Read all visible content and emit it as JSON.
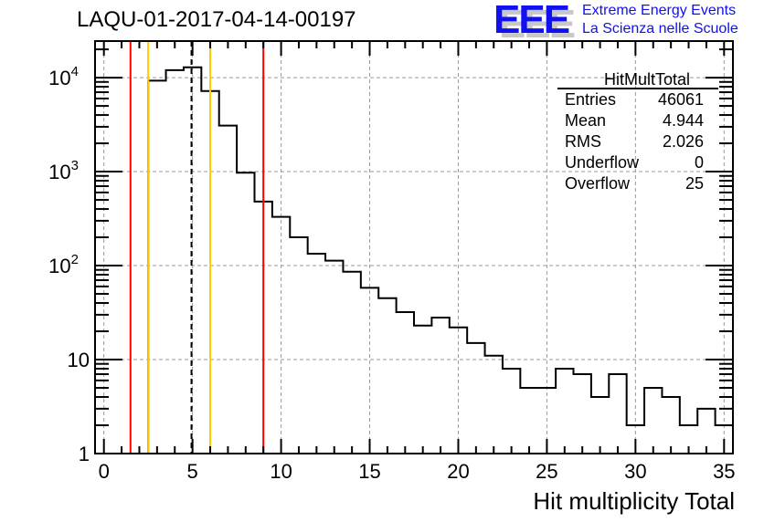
{
  "title": "LAQU-01-2017-04-14-00197",
  "logo": {
    "mark": "EEE",
    "line1": "Extreme Energy Events",
    "line2": "La Scienza nelle Scuole"
  },
  "stats": {
    "name": "HitMultTotal",
    "rows": [
      {
        "label": "Entries",
        "value": "46061"
      },
      {
        "label": "Mean",
        "value": "4.944"
      },
      {
        "label": "RMS",
        "value": "2.026"
      },
      {
        "label": "Underflow",
        "value": "0"
      },
      {
        "label": "Overflow",
        "value": "25"
      }
    ]
  },
  "chart_data": {
    "type": "bar",
    "histogram": true,
    "title": "LAQU-01-2017-04-14-00197",
    "xlabel": "Hit multiplicity Total",
    "ylabel": "",
    "xlim": [
      -0.5,
      35.5
    ],
    "ylim": [
      1,
      24500
    ],
    "yscale": "log",
    "grid": true,
    "x": [
      0,
      1,
      2,
      3,
      4,
      5,
      6,
      7,
      8,
      9,
      10,
      11,
      12,
      13,
      14,
      15,
      16,
      17,
      18,
      19,
      20,
      21,
      22,
      23,
      24,
      25,
      26,
      27,
      28,
      29,
      30,
      31,
      32,
      33,
      34,
      35
    ],
    "values": [
      0,
      0,
      0,
      9300,
      12000,
      12900,
      7200,
      3090,
      975,
      480,
      330,
      200,
      134,
      113,
      86,
      58,
      45,
      32,
      23,
      28,
      22,
      15,
      11,
      8,
      5,
      5,
      8,
      7,
      4,
      7,
      2,
      5,
      4,
      2,
      3,
      2
    ],
    "xticks": [
      "0",
      "5",
      "10",
      "15",
      "20",
      "25",
      "30",
      "35"
    ],
    "xtick_values": [
      0,
      5,
      10,
      15,
      20,
      25,
      30,
      35
    ],
    "yticks": [
      {
        "base": "1",
        "exp": ""
      },
      {
        "base": "10",
        "exp": ""
      },
      {
        "base": "10",
        "exp": "2"
      },
      {
        "base": "10",
        "exp": "3"
      },
      {
        "base": "10",
        "exp": "4"
      }
    ],
    "ytick_values": [
      1,
      10,
      100,
      1000,
      10000
    ],
    "vertical_lines": [
      {
        "x": 1.5,
        "color": "#ff0000",
        "style": "solid"
      },
      {
        "x": 9.0,
        "color": "#ff0000",
        "style": "solid"
      },
      {
        "x": 2.5,
        "color": "#ffcc00",
        "style": "solid"
      },
      {
        "x": 6.0,
        "color": "#ffcc00",
        "style": "solid"
      },
      {
        "x": 4.944,
        "color": "#000000",
        "style": "dashed"
      }
    ],
    "legend": "top-right"
  }
}
